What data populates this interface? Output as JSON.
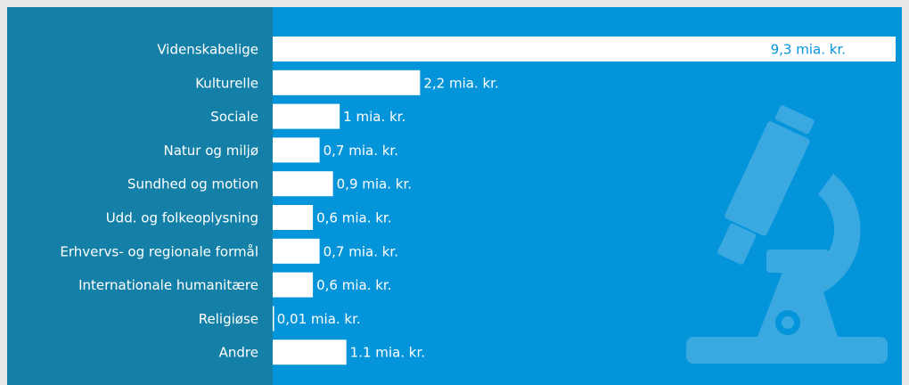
{
  "chart_data": {
    "type": "bar",
    "orientation": "horizontal",
    "categories": [
      "Videnskabelige",
      "Kulturelle",
      "Sociale",
      "Natur og miljø",
      "Sundhed og motion",
      "Udd. og folkeoplysning",
      "Erhvervs- og regionale formål",
      "Internationale humanitære",
      "Religiøse",
      "Andre"
    ],
    "values": [
      9.3,
      2.2,
      1,
      0.7,
      0.9,
      0.6,
      0.7,
      0.6,
      0.01,
      1.1
    ],
    "value_labels": [
      "9,3 mia. kr.",
      "2,2 mia. kr.",
      "1 mia. kr.",
      "0,7 mia. kr.",
      "0,9 mia. kr.",
      "0,6 mia. kr.",
      "0,7 mia. kr.",
      "0,6 mia. kr.",
      "0,01 mia. kr.",
      "1.1 mia. kr."
    ],
    "color": "#ffffff",
    "xlim": [
      0,
      9.3
    ]
  }
}
